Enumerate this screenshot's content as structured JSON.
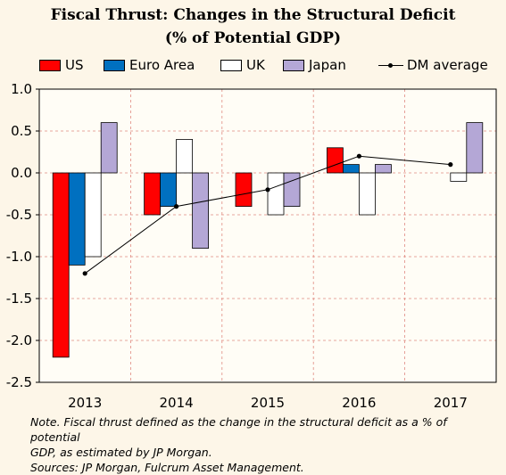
{
  "chart_data": {
    "type": "bar",
    "title_line1": "Fiscal Thrust: Changes in the Structural Deficit",
    "title_line2": "(% of Potential GDP)",
    "categories": [
      "2013",
      "2014",
      "2015",
      "2016",
      "2017"
    ],
    "series": [
      {
        "name": "US",
        "color": "#ff0000",
        "values": [
          -2.2,
          -0.5,
          -0.4,
          0.3,
          null
        ]
      },
      {
        "name": "Euro Area",
        "color": "#0070c0",
        "values": [
          -1.1,
          -0.4,
          null,
          0.1,
          null
        ]
      },
      {
        "name": "UK",
        "color": "#ffffff",
        "values": [
          -1.0,
          0.4,
          -0.5,
          -0.5,
          -0.1
        ]
      },
      {
        "name": "Japan",
        "color": "#b4a7d6",
        "values": [
          0.6,
          -0.9,
          -0.4,
          0.1,
          0.6
        ]
      }
    ],
    "line_series": {
      "name": "DM average",
      "type": "line",
      "color": "#000000",
      "values": [
        -1.2,
        -0.4,
        -0.2,
        0.2,
        0.1
      ]
    },
    "ylim": [
      -2.5,
      1.0
    ],
    "yticks": [
      "1.0",
      "0.5",
      "0.0",
      "-0.5",
      "-1.0",
      "-1.5",
      "-2.0",
      "-2.5"
    ],
    "grid": "dashed",
    "legend_position": "top"
  },
  "note": {
    "line1": "Note. Fiscal thrust defined as the change in the structural deficit as a % of potential",
    "line2": "GDP, as estimated by JP Morgan.",
    "line3": "Sources: JP Morgan, Fulcrum Asset Management."
  }
}
